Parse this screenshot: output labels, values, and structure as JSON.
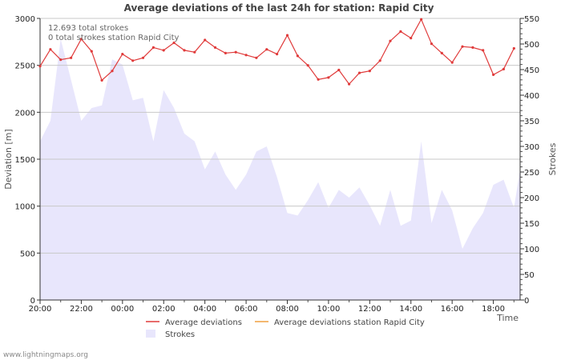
{
  "chart_data": {
    "type": "line",
    "title": "Average deviations of the last 24h for station: Rapid City",
    "xlabel": "Time",
    "ylabel_left": "Deviation  [m]",
    "ylabel_right": "Strokes",
    "ylim_left": [
      0,
      3000
    ],
    "ylim_right": [
      0,
      550
    ],
    "left_ticks": [
      0,
      500,
      1000,
      1500,
      2000,
      2500,
      3000
    ],
    "right_ticks": [
      0,
      50,
      100,
      150,
      200,
      250,
      300,
      350,
      400,
      450,
      500,
      550
    ],
    "x_tick_labels": [
      "20:00",
      "22:00",
      "00:00",
      "02:00",
      "04:00",
      "06:00",
      "08:00",
      "10:00",
      "12:00",
      "14:00",
      "16:00",
      "18:00"
    ],
    "x_hours_range": [
      0,
      23.3
    ],
    "annotations": [
      "12.693 total strokes",
      "0 total strokes station Rapid City"
    ],
    "colors": {
      "deviation": "#e03b3b",
      "station": "#f0a040",
      "strokes_fill": "#e8e6fc",
      "grid": "#c8c8c8"
    },
    "series": [
      {
        "name": "Average deviations",
        "axis": "left",
        "x": [
          0,
          0.5,
          1,
          1.5,
          2,
          2.5,
          3,
          3.5,
          4,
          4.5,
          5,
          5.5,
          6,
          6.5,
          7,
          7.5,
          8,
          8.5,
          9,
          9.5,
          10,
          10.5,
          11,
          11.5,
          12,
          12.5,
          13,
          13.5,
          14,
          14.5,
          15,
          15.5,
          16,
          16.5,
          17,
          17.5,
          18,
          18.5,
          19,
          19.5,
          20,
          20.5,
          21,
          21.5,
          22,
          22.5,
          23
        ],
        "values": [
          2490,
          2670,
          2560,
          2580,
          2780,
          2650,
          2340,
          2440,
          2620,
          2550,
          2580,
          2690,
          2660,
          2740,
          2660,
          2640,
          2770,
          2690,
          2630,
          2640,
          2610,
          2580,
          2670,
          2620,
          2820,
          2600,
          2500,
          2350,
          2370,
          2450,
          2300,
          2420,
          2440,
          2550,
          2760,
          2860,
          2790,
          2990,
          2730,
          2630,
          2530,
          2700,
          2690,
          2660,
          2400,
          2460,
          2680
        ]
      },
      {
        "name": "Average deviations station Rapid City",
        "axis": "left",
        "x": [],
        "values": []
      },
      {
        "name": "Strokes",
        "axis": "right",
        "x": [
          0,
          0.5,
          1,
          1.5,
          2,
          2.5,
          3,
          3.5,
          4,
          4.5,
          5,
          5.5,
          6,
          6.5,
          7,
          7.5,
          8,
          8.5,
          9,
          9.5,
          10,
          10.5,
          11,
          11.5,
          12,
          12.5,
          13,
          13.5,
          14,
          14.5,
          15,
          15.5,
          16,
          16.5,
          17,
          17.5,
          18,
          18.5,
          19,
          19.5,
          20,
          20.5,
          21,
          21.5,
          22,
          22.5,
          23,
          23.3
        ],
        "values": [
          310,
          350,
          510,
          430,
          350,
          375,
          380,
          470,
          460,
          390,
          395,
          310,
          410,
          375,
          325,
          310,
          255,
          290,
          245,
          215,
          245,
          290,
          300,
          240,
          170,
          165,
          195,
          230,
          180,
          215,
          200,
          220,
          185,
          145,
          215,
          145,
          155,
          310,
          150,
          215,
          175,
          100,
          140,
          170,
          225,
          235,
          180,
          255
        ]
      }
    ],
    "legend": [
      {
        "label": "Average deviations",
        "kind": "line",
        "color": "#e03b3b"
      },
      {
        "label": "Average deviations station Rapid City",
        "kind": "line",
        "color": "#f0a040"
      },
      {
        "label": "Strokes",
        "kind": "area",
        "color": "#e8e6fc"
      }
    ]
  },
  "footer": "www.lightningmaps.org"
}
